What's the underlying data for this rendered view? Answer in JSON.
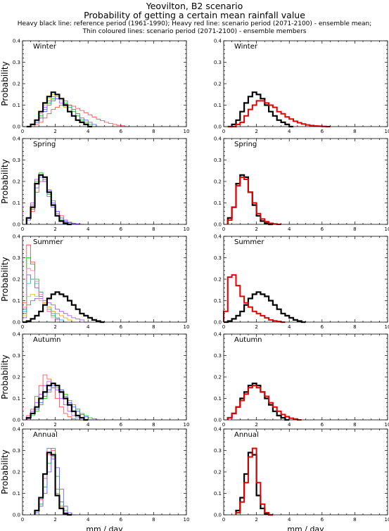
{
  "header": {
    "title_line1": "Yeovilton, B2 scenario",
    "title_line2": "Probability of getting a certain mean rainfall value",
    "note_line1": "Heavy black line: reference period (1961-1990); Heavy red line: scenario period (2071-2100) - ensemble mean;",
    "note_line2": "Thin coloured lines: scenario period (2071-2100) - ensemble members"
  },
  "colors": {
    "reference": "#000000",
    "scenario_mean": "#e00000",
    "members": [
      "#ff4040",
      "#00c000",
      "#5050ff",
      "#a040ff",
      "#e0c000",
      "#00c0c0",
      "#ff80c0",
      "#ff8000"
    ]
  },
  "chart_data": [
    {
      "type": "line",
      "panel": "left",
      "title": "Winter",
      "xlabel": "",
      "ylabel": "Probability",
      "xlim": [
        0,
        10
      ],
      "ylim": [
        0,
        0.4
      ],
      "x_ticks": [
        0,
        2,
        4,
        6,
        8,
        10
      ],
      "y_ticks": [
        0.0,
        0.1,
        0.2,
        0.3,
        0.4
      ],
      "bin_width": 0.25,
      "bin_start": 0.25,
      "series": [
        {
          "role": "reference",
          "values": [
            0.0,
            0.01,
            0.03,
            0.07,
            0.11,
            0.14,
            0.16,
            0.15,
            0.13,
            0.1,
            0.07,
            0.05,
            0.03,
            0.02,
            0.01,
            0.0
          ]
        },
        {
          "role": "member",
          "values": [
            0.0,
            0.0,
            0.01,
            0.02,
            0.04,
            0.06,
            0.08,
            0.09,
            0.1,
            0.105,
            0.1,
            0.095,
            0.085,
            0.075,
            0.065,
            0.055,
            0.045,
            0.035,
            0.028,
            0.02,
            0.015,
            0.01,
            0.006,
            0.004,
            0.0
          ]
        },
        {
          "role": "member",
          "values": [
            0.0,
            0.01,
            0.02,
            0.05,
            0.08,
            0.11,
            0.13,
            0.14,
            0.13,
            0.11,
            0.09,
            0.07,
            0.05,
            0.03,
            0.02,
            0.01,
            0.0
          ]
        },
        {
          "role": "member",
          "values": [
            0.0,
            0.01,
            0.02,
            0.04,
            0.07,
            0.1,
            0.12,
            0.13,
            0.13,
            0.12,
            0.1,
            0.08,
            0.06,
            0.04,
            0.03,
            0.02,
            0.01,
            0.0
          ]
        },
        {
          "role": "member",
          "values": [
            0.0,
            0.01,
            0.03,
            0.06,
            0.09,
            0.12,
            0.14,
            0.13,
            0.11,
            0.09,
            0.07,
            0.05,
            0.03,
            0.02,
            0.01,
            0.0
          ]
        },
        {
          "role": "member",
          "values": [
            0.0,
            0.01,
            0.03,
            0.06,
            0.1,
            0.13,
            0.15,
            0.14,
            0.12,
            0.09,
            0.07,
            0.05,
            0.03,
            0.02,
            0.01,
            0.0
          ]
        }
      ]
    },
    {
      "type": "line",
      "panel": "right",
      "title": "Winter",
      "xlabel": "",
      "ylabel": "",
      "xlim": [
        0,
        10
      ],
      "ylim": [
        0,
        0.4
      ],
      "x_ticks": [
        0,
        2,
        4,
        6,
        8,
        10
      ],
      "y_ticks": [
        0.0,
        0.1,
        0.2,
        0.3,
        0.4
      ],
      "bin_width": 0.25,
      "bin_start": 0.25,
      "series": [
        {
          "role": "reference",
          "values": [
            0.0,
            0.01,
            0.03,
            0.07,
            0.11,
            0.14,
            0.16,
            0.15,
            0.13,
            0.1,
            0.07,
            0.05,
            0.03,
            0.02,
            0.01,
            0.0
          ]
        },
        {
          "role": "scenario_mean",
          "values": [
            0.0,
            0.0,
            0.01,
            0.02,
            0.05,
            0.08,
            0.1,
            0.12,
            0.12,
            0.11,
            0.1,
            0.09,
            0.07,
            0.06,
            0.045,
            0.035,
            0.025,
            0.018,
            0.012,
            0.008,
            0.005,
            0.003,
            0.002,
            0.001,
            0.0
          ]
        }
      ]
    },
    {
      "type": "line",
      "panel": "left",
      "title": "Spring",
      "xlabel": "",
      "ylabel": "Probability",
      "xlim": [
        0,
        10
      ],
      "ylim": [
        0,
        0.4
      ],
      "x_ticks": [
        0,
        2,
        4,
        6,
        8,
        10
      ],
      "y_ticks": [
        0.0,
        0.1,
        0.2,
        0.3,
        0.4
      ],
      "bin_width": 0.25,
      "bin_start": 0.25,
      "series": [
        {
          "role": "reference",
          "values": [
            0.03,
            0.08,
            0.19,
            0.23,
            0.22,
            0.15,
            0.09,
            0.04,
            0.015,
            0.005,
            0.0
          ]
        },
        {
          "role": "member",
          "values": [
            0.02,
            0.06,
            0.15,
            0.2,
            0.21,
            0.16,
            0.11,
            0.06,
            0.04,
            0.02,
            0.01,
            0.005,
            0.0
          ]
        },
        {
          "role": "member",
          "values": [
            0.03,
            0.09,
            0.2,
            0.24,
            0.21,
            0.14,
            0.08,
            0.04,
            0.02,
            0.01,
            0.0
          ]
        },
        {
          "role": "member",
          "values": [
            0.02,
            0.07,
            0.17,
            0.22,
            0.2,
            0.16,
            0.1,
            0.06,
            0.03,
            0.015,
            0.008,
            0.003,
            0.0
          ]
        },
        {
          "role": "member",
          "values": [
            0.03,
            0.1,
            0.21,
            0.23,
            0.2,
            0.13,
            0.08,
            0.05,
            0.03,
            0.02,
            0.01,
            0.005,
            0.003,
            0.0
          ]
        }
      ]
    },
    {
      "type": "line",
      "panel": "right",
      "title": "Spring",
      "xlabel": "",
      "ylabel": "",
      "xlim": [
        0,
        10
      ],
      "ylim": [
        0,
        0.4
      ],
      "x_ticks": [
        0,
        2,
        4,
        6,
        8,
        10
      ],
      "y_ticks": [
        0.0,
        0.1,
        0.2,
        0.3,
        0.4
      ],
      "bin_width": 0.25,
      "bin_start": 0.25,
      "series": [
        {
          "role": "reference",
          "values": [
            0.03,
            0.08,
            0.19,
            0.23,
            0.22,
            0.15,
            0.09,
            0.04,
            0.015,
            0.005,
            0.0
          ]
        },
        {
          "role": "scenario_mean",
          "values": [
            0.02,
            0.08,
            0.18,
            0.22,
            0.21,
            0.15,
            0.1,
            0.05,
            0.025,
            0.012,
            0.005,
            0.002,
            0.0
          ]
        }
      ]
    },
    {
      "type": "line",
      "panel": "left",
      "title": "Summer",
      "xlabel": "",
      "ylabel": "Probability",
      "xlim": [
        0,
        10
      ],
      "ylim": [
        0,
        0.4
      ],
      "x_ticks": [
        0,
        2,
        4,
        6,
        8,
        10
      ],
      "y_ticks": [
        0.0,
        0.1,
        0.2,
        0.3,
        0.4
      ],
      "bin_width": 0.25,
      "bin_start": 0.0,
      "series": [
        {
          "role": "reference",
          "values": [
            0.0,
            0.005,
            0.015,
            0.03,
            0.05,
            0.08,
            0.11,
            0.13,
            0.14,
            0.13,
            0.12,
            0.1,
            0.08,
            0.06,
            0.04,
            0.03,
            0.02,
            0.01,
            0.005,
            0.0
          ]
        },
        {
          "role": "member",
          "values": [
            0.09,
            0.36,
            0.28,
            0.19,
            0.12,
            0.08,
            0.05,
            0.03,
            0.02,
            0.01,
            0.0
          ]
        },
        {
          "role": "member",
          "values": [
            0.06,
            0.3,
            0.27,
            0.2,
            0.14,
            0.09,
            0.05,
            0.03,
            0.015,
            0.0
          ]
        },
        {
          "role": "member",
          "values": [
            0.04,
            0.22,
            0.2,
            0.16,
            0.12,
            0.09,
            0.07,
            0.05,
            0.04,
            0.03,
            0.02,
            0.01,
            0.0
          ]
        },
        {
          "role": "member",
          "values": [
            0.02,
            0.08,
            0.1,
            0.11,
            0.11,
            0.1,
            0.09,
            0.08,
            0.06,
            0.05,
            0.04,
            0.03,
            0.02,
            0.015,
            0.01,
            0.0
          ]
        },
        {
          "role": "member",
          "values": [
            0.03,
            0.12,
            0.13,
            0.12,
            0.1,
            0.09,
            0.07,
            0.05,
            0.04,
            0.03,
            0.02,
            0.01,
            0.0
          ]
        },
        {
          "role": "member",
          "values": [
            0.05,
            0.18,
            0.2,
            0.18,
            0.14,
            0.1,
            0.06,
            0.04,
            0.02,
            0.01,
            0.0
          ]
        },
        {
          "role": "member",
          "values": [
            0.07,
            0.25,
            0.24,
            0.19,
            0.13,
            0.08,
            0.05,
            0.02,
            0.01,
            0.0
          ]
        }
      ]
    },
    {
      "type": "line",
      "panel": "right",
      "title": "Summer",
      "xlabel": "",
      "ylabel": "",
      "xlim": [
        0,
        10
      ],
      "ylim": [
        0,
        0.4
      ],
      "x_ticks": [
        0,
        2,
        4,
        6,
        8,
        10
      ],
      "y_ticks": [
        0.0,
        0.1,
        0.2,
        0.3,
        0.4
      ],
      "bin_width": 0.25,
      "bin_start": 0.0,
      "series": [
        {
          "role": "reference",
          "values": [
            0.0,
            0.005,
            0.015,
            0.03,
            0.05,
            0.08,
            0.11,
            0.13,
            0.14,
            0.13,
            0.12,
            0.1,
            0.08,
            0.06,
            0.04,
            0.03,
            0.02,
            0.01,
            0.005,
            0.0
          ]
        },
        {
          "role": "scenario_mean",
          "values": [
            0.05,
            0.21,
            0.22,
            0.17,
            0.12,
            0.09,
            0.07,
            0.05,
            0.04,
            0.03,
            0.02,
            0.01,
            0.006,
            0.003,
            0.0
          ]
        }
      ]
    },
    {
      "type": "line",
      "panel": "left",
      "title": "Autumn",
      "xlabel": "",
      "ylabel": "Probability",
      "xlim": [
        0,
        10
      ],
      "ylim": [
        0,
        0.4
      ],
      "x_ticks": [
        0,
        2,
        4,
        6,
        8,
        10
      ],
      "y_ticks": [
        0.0,
        0.1,
        0.2,
        0.3,
        0.4
      ],
      "bin_width": 0.25,
      "bin_start": 0.25,
      "series": [
        {
          "role": "reference",
          "values": [
            0.01,
            0.03,
            0.06,
            0.1,
            0.13,
            0.16,
            0.17,
            0.16,
            0.13,
            0.1,
            0.07,
            0.04,
            0.02,
            0.01,
            0.0
          ]
        },
        {
          "role": "member",
          "values": [
            0.02,
            0.05,
            0.11,
            0.16,
            0.21,
            0.19,
            0.15,
            0.1,
            0.06,
            0.03,
            0.015,
            0.005,
            0.0
          ]
        },
        {
          "role": "member",
          "values": [
            0.005,
            0.02,
            0.04,
            0.07,
            0.1,
            0.13,
            0.15,
            0.15,
            0.14,
            0.12,
            0.09,
            0.07,
            0.05,
            0.03,
            0.02,
            0.01,
            0.005,
            0.0
          ]
        },
        {
          "role": "member",
          "values": [
            0.01,
            0.03,
            0.05,
            0.08,
            0.11,
            0.14,
            0.16,
            0.16,
            0.14,
            0.11,
            0.08,
            0.06,
            0.04,
            0.025,
            0.015,
            0.0
          ]
        },
        {
          "role": "member",
          "values": [
            0.01,
            0.04,
            0.08,
            0.12,
            0.16,
            0.18,
            0.17,
            0.14,
            0.1,
            0.07,
            0.04,
            0.02,
            0.01,
            0.0
          ]
        }
      ]
    },
    {
      "type": "line",
      "panel": "right",
      "title": "Autumn",
      "xlabel": "",
      "ylabel": "",
      "xlim": [
        0,
        10
      ],
      "ylim": [
        0,
        0.4
      ],
      "x_ticks": [
        0,
        2,
        4,
        6,
        8,
        10
      ],
      "y_ticks": [
        0.0,
        0.1,
        0.2,
        0.3,
        0.4
      ],
      "bin_width": 0.25,
      "bin_start": 0.25,
      "series": [
        {
          "role": "reference",
          "values": [
            0.01,
            0.03,
            0.06,
            0.1,
            0.13,
            0.16,
            0.17,
            0.16,
            0.13,
            0.1,
            0.07,
            0.04,
            0.02,
            0.01,
            0.0
          ]
        },
        {
          "role": "scenario_mean",
          "values": [
            0.01,
            0.03,
            0.06,
            0.09,
            0.12,
            0.15,
            0.16,
            0.15,
            0.13,
            0.11,
            0.08,
            0.06,
            0.04,
            0.025,
            0.015,
            0.008,
            0.004,
            0.0
          ]
        }
      ]
    },
    {
      "type": "line",
      "panel": "left",
      "title": "Annual",
      "xlabel": "mm / day",
      "ylabel": "Probability",
      "xlim": [
        0,
        10
      ],
      "ylim": [
        0,
        0.4
      ],
      "x_ticks": [
        0,
        2,
        4,
        6,
        8,
        10
      ],
      "y_ticks": [
        0.0,
        0.1,
        0.2,
        0.3,
        0.4
      ],
      "bin_width": 0.25,
      "bin_start": 0.75,
      "series": [
        {
          "role": "reference",
          "values": [
            0.02,
            0.08,
            0.19,
            0.29,
            0.28,
            0.09,
            0.03,
            0.005,
            0.0
          ]
        },
        {
          "role": "member",
          "values": [
            0.02,
            0.07,
            0.17,
            0.28,
            0.3,
            0.12,
            0.04,
            0.01,
            0.0
          ]
        },
        {
          "role": "member",
          "values": [
            0.01,
            0.05,
            0.13,
            0.24,
            0.31,
            0.18,
            0.06,
            0.02,
            0.0
          ]
        },
        {
          "role": "member",
          "values": [
            0.01,
            0.04,
            0.1,
            0.2,
            0.27,
            0.22,
            0.12,
            0.04,
            0.01,
            0.0
          ]
        },
        {
          "role": "member",
          "values": [
            0.02,
            0.08,
            0.19,
            0.31,
            0.26,
            0.1,
            0.03,
            0.01,
            0.0
          ]
        }
      ]
    },
    {
      "type": "line",
      "panel": "right",
      "title": "Annual",
      "xlabel": "mm / day",
      "ylabel": "",
      "xlim": [
        0,
        10
      ],
      "ylim": [
        0,
        0.4
      ],
      "x_ticks": [
        0,
        2,
        4,
        6,
        8,
        10
      ],
      "y_ticks": [
        0.0,
        0.1,
        0.2,
        0.3,
        0.4
      ],
      "bin_width": 0.25,
      "bin_start": 0.75,
      "series": [
        {
          "role": "reference",
          "values": [
            0.02,
            0.08,
            0.19,
            0.29,
            0.28,
            0.09,
            0.03,
            0.005,
            0.0
          ]
        },
        {
          "role": "scenario_mean",
          "values": [
            0.01,
            0.06,
            0.15,
            0.27,
            0.31,
            0.15,
            0.05,
            0.01,
            0.0
          ]
        }
      ]
    }
  ]
}
